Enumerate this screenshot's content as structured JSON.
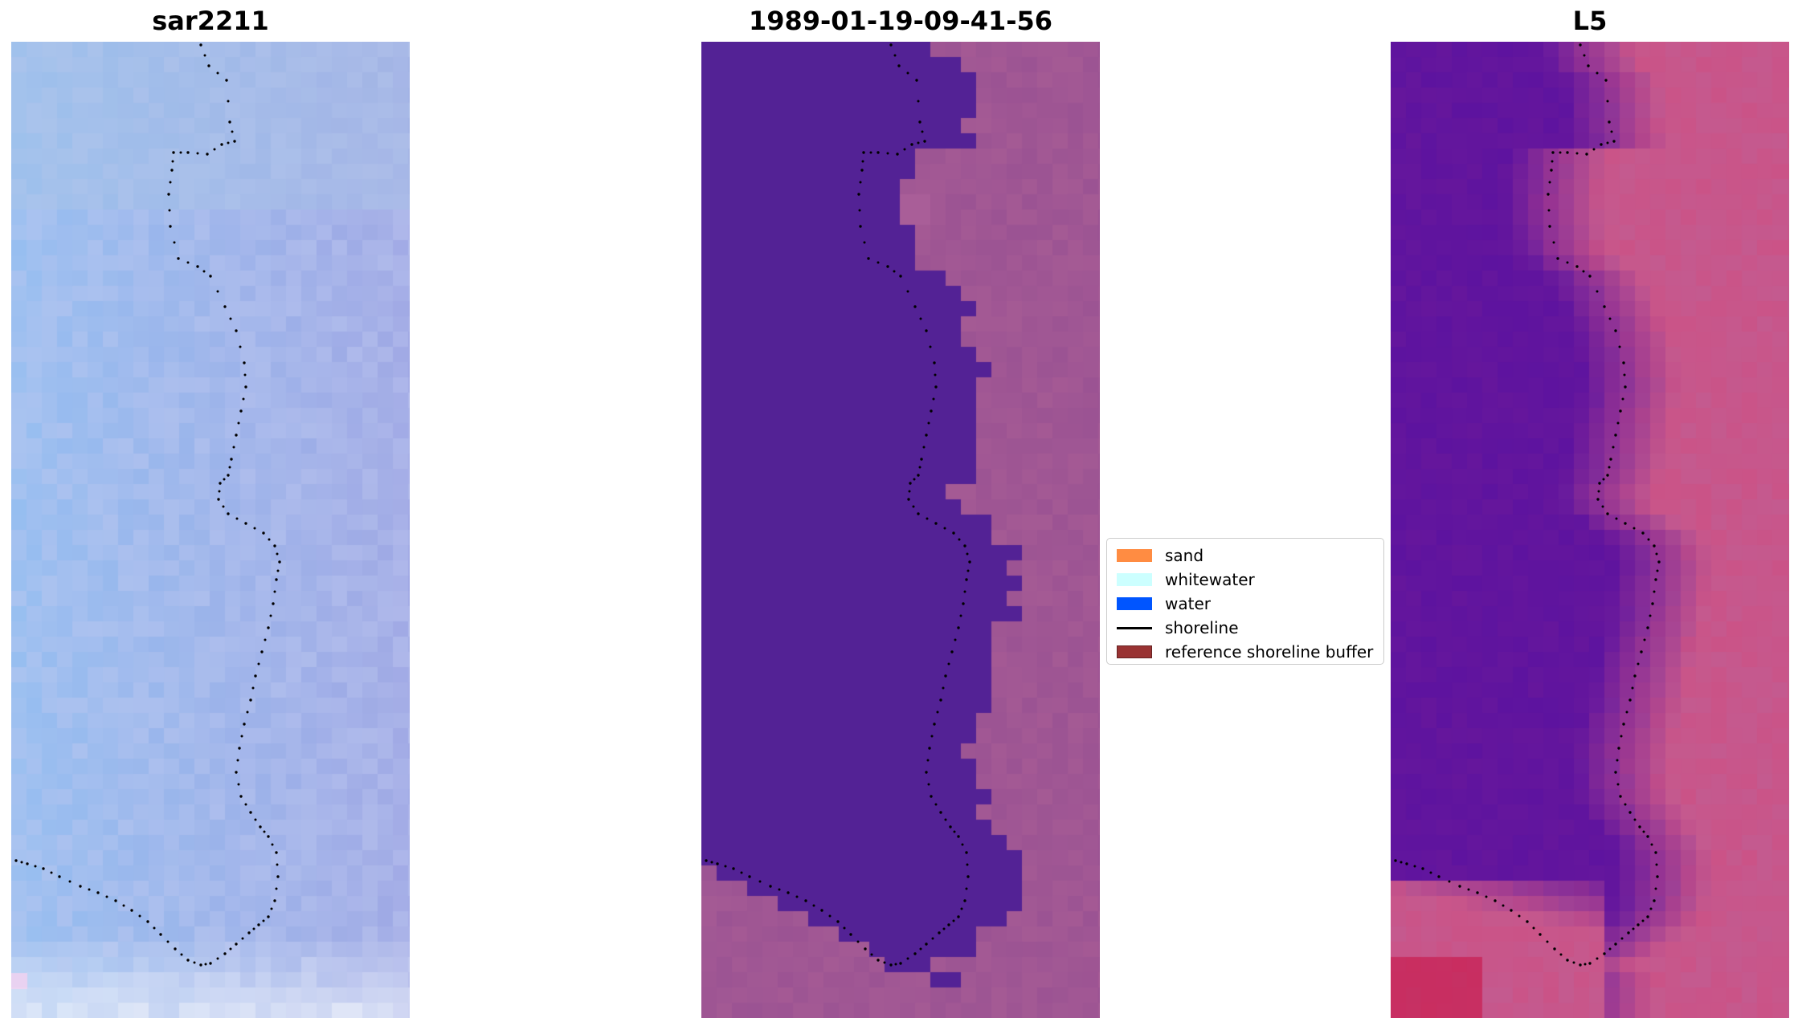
{
  "panels": [
    {
      "title": "sar2211"
    },
    {
      "title": "1989-01-19-09-41-56"
    },
    {
      "title": "L5"
    }
  ],
  "legend": {
    "items": [
      {
        "label": "sand",
        "color": "#ff8c42",
        "kind": "patch"
      },
      {
        "label": "whitewater",
        "color": "#ccffff",
        "kind": "patch"
      },
      {
        "label": "water",
        "color": "#0055ff",
        "kind": "patch"
      },
      {
        "label": "shoreline",
        "color": "#000000",
        "kind": "line"
      },
      {
        "label": "reference shoreline buffer",
        "color": "#993333",
        "kind": "patch"
      }
    ]
  },
  "colors": {
    "sar_base": "#a3b8e6",
    "classified_water": "#532295",
    "classified_land": "#9b5393",
    "l5_water": "#5d139f",
    "l5_land": "#c45a8f",
    "shoreline_dots": "#000000"
  }
}
